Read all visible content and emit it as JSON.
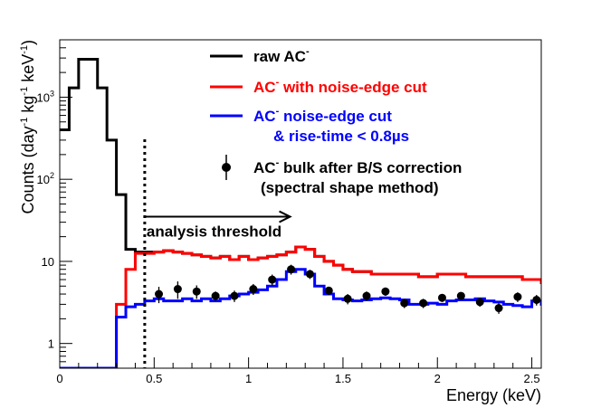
{
  "chart_data": {
    "type": "histogram",
    "xlabel": "Energy (keV)",
    "ylabel_parts": [
      "Counts (day",
      "-1",
      " kg",
      "-1",
      " keV",
      "-1",
      ")"
    ],
    "xlim": [
      0,
      2.55
    ],
    "ylim": [
      0.5,
      5000
    ],
    "y_scale": "log",
    "x_ticks": [
      {
        "value": 0,
        "label": "0"
      },
      {
        "value": 0.5,
        "label": "0.5"
      },
      {
        "value": 1,
        "label": "1"
      },
      {
        "value": 1.5,
        "label": "1.5"
      },
      {
        "value": 2,
        "label": "2"
      },
      {
        "value": 2.5,
        "label": "2.5"
      }
    ],
    "y_ticks": [
      {
        "value": 1,
        "base": "1",
        "exp": ""
      },
      {
        "value": 10,
        "base": "10",
        "exp": ""
      },
      {
        "value": 100,
        "base": "10",
        "exp": "2"
      },
      {
        "value": 1000,
        "base": "10",
        "exp": "3"
      }
    ],
    "bin_width": 0.05,
    "series": [
      {
        "name": "raw AC-",
        "color": "#000000",
        "style": "step",
        "x_start": 0,
        "values": [
          400,
          1300,
          2900,
          2900,
          1300,
          300,
          65,
          14,
          13,
          13,
          13,
          13.5,
          13,
          12.5,
          12,
          11.5,
          11,
          11.5,
          10.5,
          11.5,
          10.5,
          11,
          11.5,
          12,
          13,
          15,
          14,
          11.5,
          10,
          9,
          8,
          7.5,
          7.5,
          7,
          7,
          7,
          7,
          7,
          6.5,
          6.5,
          7,
          7,
          7,
          6.5,
          6.5,
          6.5,
          6.5,
          6.5,
          6.5,
          6,
          6,
          5.5
        ]
      },
      {
        "name": "AC- with noise-edge cut",
        "color": "#ff0000",
        "style": "step",
        "x_start": 0,
        "values": [
          0.5,
          0.5,
          0.5,
          0.5,
          0.5,
          0.5,
          3,
          8,
          12.5,
          12.5,
          13,
          13.5,
          13,
          12.5,
          12,
          11.5,
          11,
          11.5,
          10.5,
          11.5,
          10.5,
          11,
          11.5,
          12,
          13,
          15,
          14,
          11.5,
          10,
          9,
          8,
          7.5,
          7.5,
          7,
          7,
          7,
          7,
          7,
          6.5,
          6.5,
          7,
          7,
          7,
          6.5,
          6.5,
          6.5,
          6.5,
          6.5,
          6.5,
          6,
          6,
          5.5
        ]
      },
      {
        "name": "AC- noise-edge cut & rise-time < 0.8µs",
        "color": "#0000ff",
        "style": "step",
        "x_start": 0,
        "values": [
          0.5,
          0.5,
          0.5,
          0.5,
          0.5,
          0.5,
          2.1,
          2.8,
          3.0,
          3.3,
          3.5,
          3.3,
          3.3,
          3.5,
          3.3,
          3.5,
          3.3,
          3.5,
          3.8,
          4.0,
          4.2,
          4.5,
          5.0,
          6.0,
          7.5,
          8.0,
          7.0,
          5.0,
          4.0,
          3.5,
          3.4,
          3.3,
          3.4,
          3.5,
          3.6,
          3.5,
          3.4,
          3.0,
          3.0,
          3.1,
          3.0,
          3.3,
          3.4,
          3.4,
          3.5,
          3.3,
          3.2,
          3.0,
          2.9,
          2.8,
          3.3,
          3.0
        ]
      }
    ],
    "points": {
      "name": "AC- bulk after B/S correction (spectral shape method)",
      "color": "#000000",
      "x": [
        0.525,
        0.625,
        0.725,
        0.825,
        0.925,
        1.025,
        1.125,
        1.225,
        1.325,
        1.425,
        1.525,
        1.625,
        1.725,
        1.825,
        1.925,
        2.025,
        2.125,
        2.225,
        2.325,
        2.425,
        2.525
      ],
      "y": [
        4.0,
        4.6,
        4.3,
        3.8,
        3.8,
        4.6,
        6.0,
        8.0,
        7.0,
        4.4,
        3.5,
        3.8,
        4.3,
        3.1,
        3.1,
        3.6,
        3.8,
        3.2,
        2.7,
        3.7,
        3.4
      ],
      "y_err_low": [
        0.9,
        1.1,
        0.8,
        0.5,
        0.6,
        0.7,
        0.9,
        1.1,
        0.9,
        0.5,
        0.5,
        0.5,
        0.5,
        0.4,
        0.4,
        0.4,
        0.4,
        0.4,
        0.4,
        0.5,
        0.5
      ],
      "y_err_high": [
        0.9,
        1.1,
        0.8,
        0.5,
        0.6,
        0.7,
        0.9,
        1.1,
        0.9,
        0.5,
        0.5,
        0.5,
        0.5,
        0.4,
        0.4,
        0.4,
        0.4,
        0.4,
        0.4,
        0.5,
        0.5
      ]
    },
    "threshold": {
      "x": 0.45,
      "label": "analysis threshold",
      "arrow_to": 1.22,
      "arrow_y": 35
    },
    "legend": {
      "placement": "top-right",
      "entries": [
        {
          "key": "raw",
          "parts": [
            {
              "text": "raw AC"
            },
            {
              "text": "-",
              "sup": true
            }
          ],
          "color": "#000000",
          "marker": "line"
        },
        {
          "key": "noise",
          "parts": [
            {
              "text": "AC"
            },
            {
              "text": "-",
              "sup": true
            },
            {
              "text": " with noise-edge cut"
            }
          ],
          "color": "#ff0000",
          "marker": "line"
        },
        {
          "key": "rise",
          "parts": [
            {
              "text": "AC"
            },
            {
              "text": "-",
              "sup": true
            },
            {
              "text": " noise-edge cut"
            }
          ],
          "line2": "& rise-time < 0.8µs",
          "color": "#0000ff",
          "marker": "line"
        },
        {
          "key": "bulk",
          "parts": [
            {
              "text": "AC"
            },
            {
              "text": "-",
              "sup": true
            },
            {
              "text": " bulk after B/S correction"
            }
          ],
          "line2": "(spectral shape method)",
          "color": "#000000",
          "marker": "point"
        }
      ]
    }
  }
}
